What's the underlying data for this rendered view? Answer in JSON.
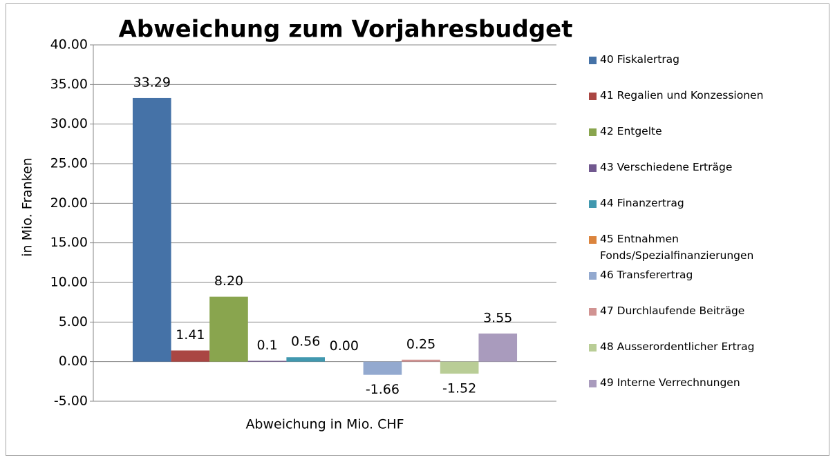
{
  "chart_data": {
    "type": "bar",
    "title": "Abweichung zum Vorjahresbudget",
    "y_label": "in Mio. Franken",
    "categories": [
      "Abweichung in Mio. CHF"
    ],
    "series": [
      {
        "name": "40 Fiskalertrag",
        "color": "#4572a7",
        "values": [
          33.29
        ]
      },
      {
        "name": "41 Regalien und Konzessionen",
        "color": "#aa4643",
        "values": [
          1.41
        ]
      },
      {
        "name": "42 Entgelte",
        "color": "#89a54e",
        "values": [
          8.2
        ],
        "value_labels": [
          "8.20"
        ]
      },
      {
        "name": "43 Verschiedene Erträge",
        "color": "#71588f",
        "values": [
          0.1
        ]
      },
      {
        "name": "44 Finanzertrag",
        "color": "#4198af",
        "values": [
          0.56
        ]
      },
      {
        "name": "45 Entnahmen Fonds/Spezialfinanzierungen",
        "color": "#db843d",
        "values": [
          0
        ],
        "value_labels": [
          "0.00"
        ]
      },
      {
        "name": "46 Transferertrag",
        "color": "#93a9cf",
        "values": [
          -1.66
        ]
      },
      {
        "name": "47 Durchlaufende Beiträge",
        "color": "#d19392",
        "values": [
          0.25
        ]
      },
      {
        "name": "48 Ausserordentlicher Ertrag",
        "color": "#b9cd96",
        "values": [
          -1.52
        ]
      },
      {
        "name": "49 Interne Verrechnungen",
        "color": "#a99bbd",
        "values": [
          3.55
        ]
      }
    ],
    "ylim": [
      -5,
      40
    ],
    "yticks": [
      {
        "value": -5,
        "label": "-5.00"
      },
      {
        "value": 0,
        "label": "0.00"
      },
      {
        "value": 5,
        "label": "5.00"
      },
      {
        "value": 10,
        "label": "10.00"
      },
      {
        "value": 15,
        "label": "15.00"
      },
      {
        "value": 20,
        "label": "20.00"
      },
      {
        "value": 25,
        "label": "25.00"
      },
      {
        "value": 30,
        "label": "30.00"
      },
      {
        "value": 35,
        "label": "35.00"
      },
      {
        "value": 40,
        "label": "40.00"
      }
    ],
    "grid": true,
    "legend": "right"
  }
}
